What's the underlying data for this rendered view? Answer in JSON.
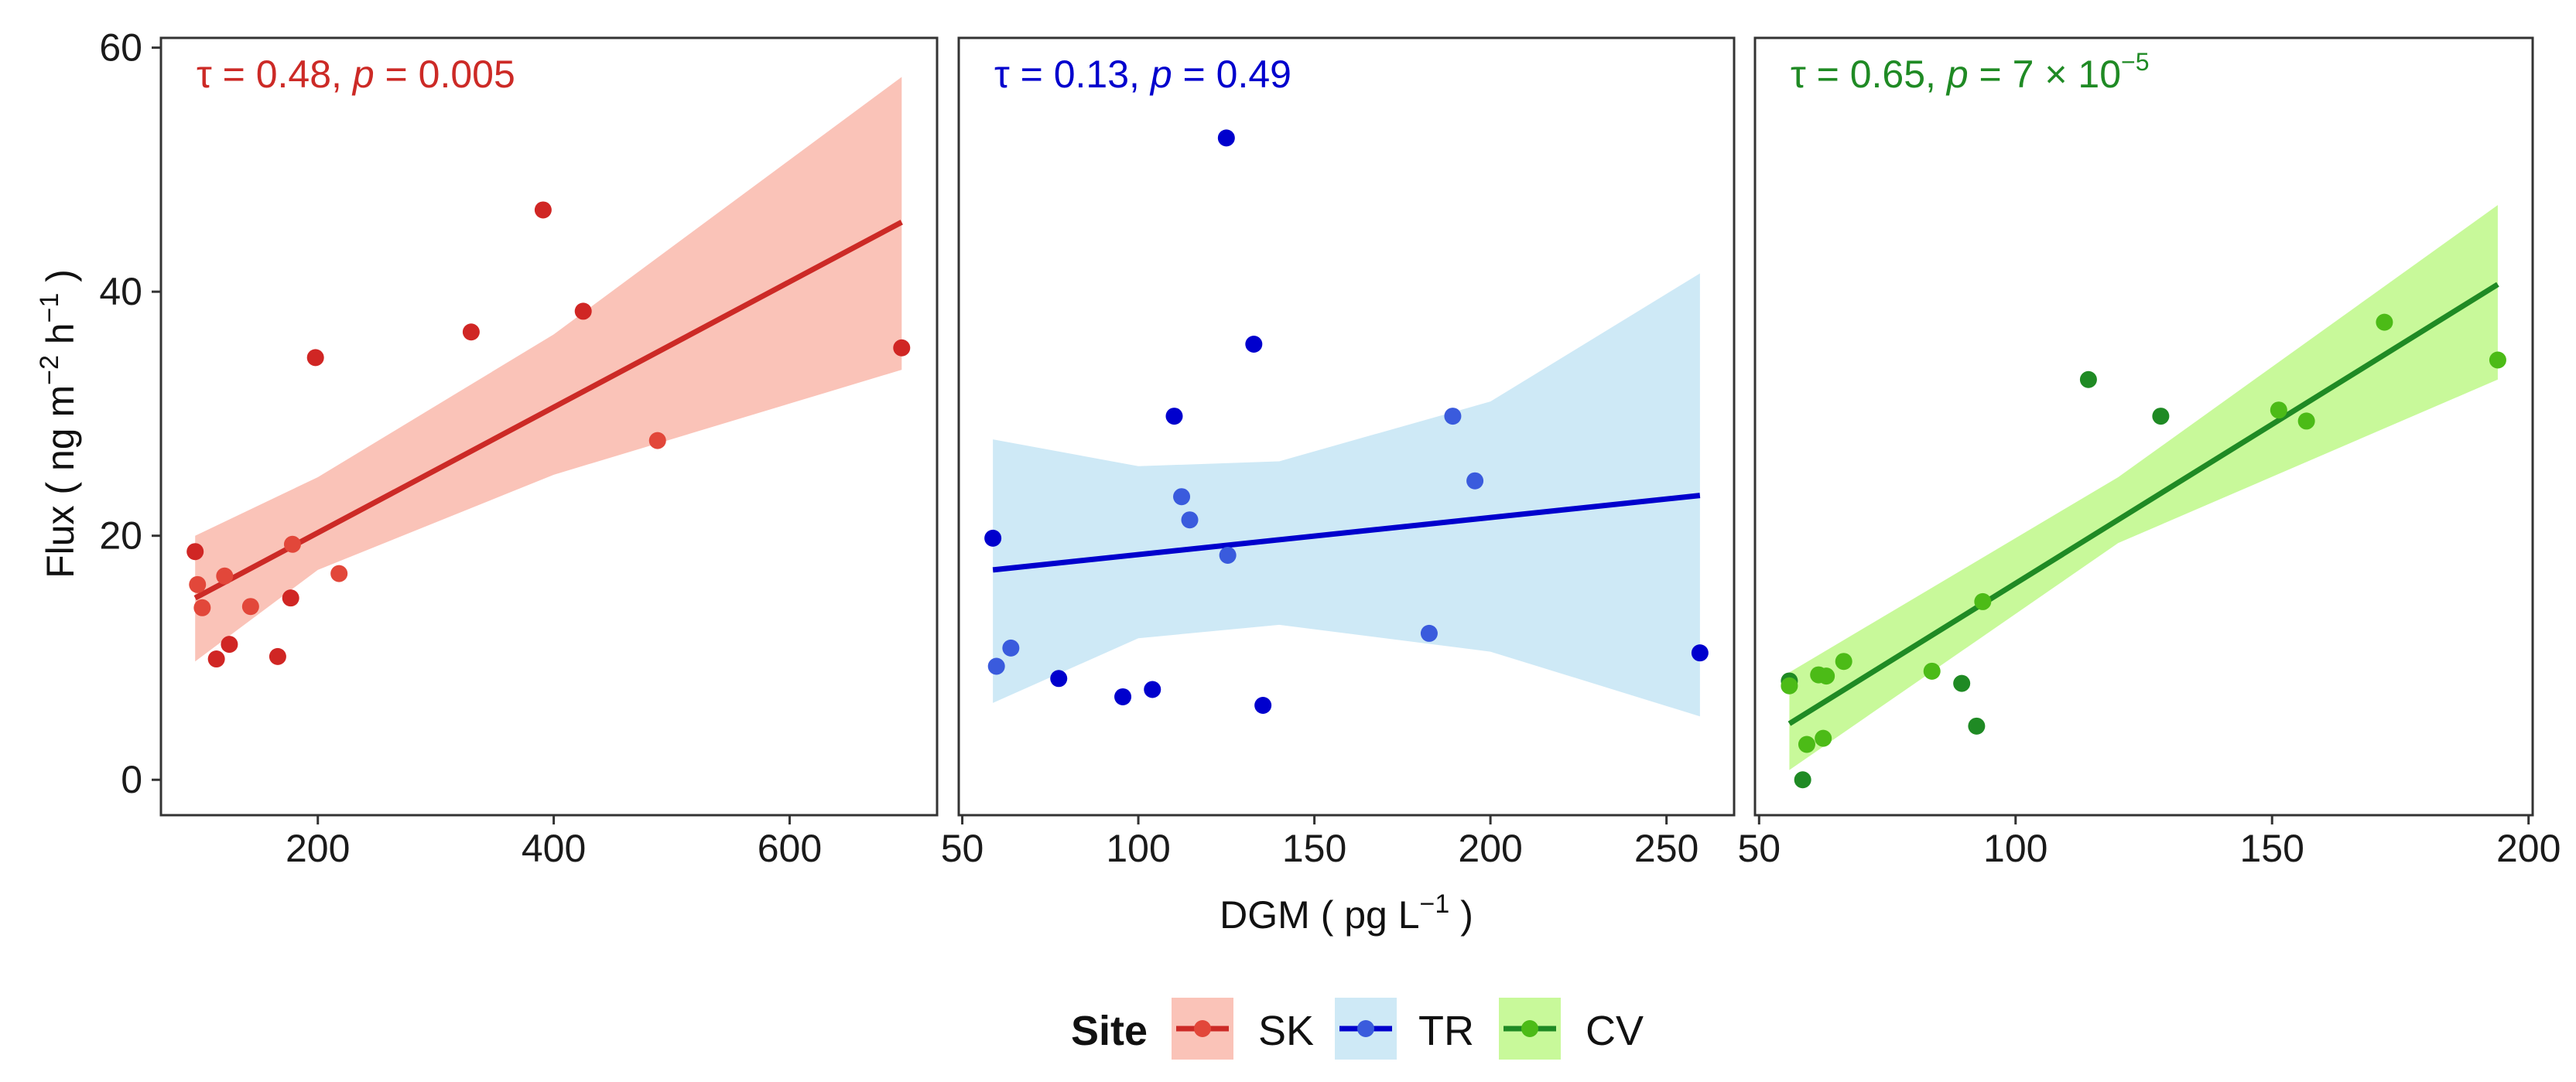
{
  "chart_data": [
    {
      "type": "scatter",
      "site": "SK",
      "color": "#CC2A26",
      "point_colors": [
        "#D02624",
        "#E2473A"
      ],
      "band_color": "#FAC3B8",
      "annotation": {
        "prefix": "τ = 0.48, ",
        "p": "p",
        "rest": " = 0.005",
        "sup": ""
      },
      "xlim": [
        67,
        725
      ],
      "ylim": [
        -2.9,
        60.8
      ],
      "xticks": [
        200,
        400,
        600
      ],
      "points": [
        {
          "x": 96,
          "y": 18.7,
          "shade": 0
        },
        {
          "x": 98,
          "y": 16.0,
          "shade": 1
        },
        {
          "x": 102,
          "y": 14.1,
          "shade": 1
        },
        {
          "x": 121,
          "y": 16.7,
          "shade": 1
        },
        {
          "x": 114,
          "y": 9.9,
          "shade": 0
        },
        {
          "x": 125,
          "y": 11.1,
          "shade": 0
        },
        {
          "x": 143,
          "y": 14.2,
          "shade": 1
        },
        {
          "x": 166,
          "y": 10.1,
          "shade": 0
        },
        {
          "x": 177,
          "y": 14.9,
          "shade": 0
        },
        {
          "x": 178.5,
          "y": 19.3,
          "shade": 1
        },
        {
          "x": 218,
          "y": 16.9,
          "shade": 1
        },
        {
          "x": 198,
          "y": 34.6,
          "shade": 0
        },
        {
          "x": 330,
          "y": 36.7,
          "shade": 0
        },
        {
          "x": 391,
          "y": 46.7,
          "shade": 0
        },
        {
          "x": 425,
          "y": 38.4,
          "shade": 0
        },
        {
          "x": 488,
          "y": 27.8,
          "shade": 1
        },
        {
          "x": 695,
          "y": 35.4,
          "shade": 0
        }
      ],
      "fit": [
        [
          96,
          14.9
        ],
        [
          695,
          45.7
        ]
      ],
      "band": [
        [
          96,
          9.7,
          20.0
        ],
        [
          200,
          17.2,
          24.8
        ],
        [
          400,
          25.0,
          36.5
        ],
        [
          695,
          33.6,
          57.6
        ]
      ]
    },
    {
      "type": "scatter",
      "site": "TR",
      "color": "#0000CD",
      "point_colors": [
        "#0000CD",
        "#3A5BDD"
      ],
      "band_color": "#CEE9F6",
      "annotation": {
        "prefix": "τ = 0.13, ",
        "p": "p",
        "rest": " = 0.49",
        "sup": ""
      },
      "xlim": [
        49.0,
        269.2
      ],
      "ylim": [
        -2.9,
        60.8
      ],
      "xticks": [
        50,
        100,
        150,
        200,
        250
      ],
      "points": [
        {
          "x": 125.0,
          "y": 52.6,
          "shade": 0
        },
        {
          "x": 132.8,
          "y": 35.7,
          "shade": 0
        },
        {
          "x": 110.2,
          "y": 29.8,
          "shade": 0
        },
        {
          "x": 189.3,
          "y": 29.8,
          "shade": 1
        },
        {
          "x": 195.6,
          "y": 24.5,
          "shade": 1
        },
        {
          "x": 112.3,
          "y": 23.2,
          "shade": 1
        },
        {
          "x": 114.6,
          "y": 21.3,
          "shade": 1
        },
        {
          "x": 58.7,
          "y": 19.8,
          "shade": 0
        },
        {
          "x": 125.4,
          "y": 18.4,
          "shade": 1
        },
        {
          "x": 182.6,
          "y": 12.0,
          "shade": 1
        },
        {
          "x": 259.5,
          "y": 10.4,
          "shade": 0
        },
        {
          "x": 63.8,
          "y": 10.8,
          "shade": 1
        },
        {
          "x": 59.7,
          "y": 9.3,
          "shade": 1
        },
        {
          "x": 77.4,
          "y": 8.3,
          "shade": 0
        },
        {
          "x": 95.6,
          "y": 6.8,
          "shade": 0
        },
        {
          "x": 104.0,
          "y": 7.4,
          "shade": 0
        },
        {
          "x": 135.4,
          "y": 6.1,
          "shade": 0
        }
      ],
      "fit": [
        [
          58.7,
          17.2
        ],
        [
          259.5,
          23.3
        ]
      ],
      "band": [
        [
          58.7,
          6.3,
          27.9
        ],
        [
          100,
          11.6,
          25.7
        ],
        [
          140,
          12.7,
          26.1
        ],
        [
          200,
          10.5,
          31.0
        ],
        [
          259.5,
          5.2,
          41.5
        ]
      ]
    },
    {
      "type": "scatter",
      "site": "CV",
      "color": "#1F8A24",
      "point_colors": [
        "#1F8A24",
        "#4CBB17"
      ],
      "band_color": "#C8F99A",
      "annotation": {
        "prefix": "τ = 0.65, ",
        "p": "p",
        "rest": " = 7 × 10",
        "sup": "−5"
      },
      "xlim": [
        49.2,
        200.8
      ],
      "ylim": [
        -2.9,
        60.8
      ],
      "xticks": [
        50,
        100,
        150,
        200
      ],
      "points": [
        {
          "x": 55.9,
          "y": 8.1,
          "shade": 0
        },
        {
          "x": 55.9,
          "y": 7.7,
          "shade": 1
        },
        {
          "x": 59.3,
          "y": 2.9,
          "shade": 1
        },
        {
          "x": 58.5,
          "y": 0.0,
          "shade": 0
        },
        {
          "x": 62.5,
          "y": 3.4,
          "shade": 1
        },
        {
          "x": 61.6,
          "y": 8.6,
          "shade": 1
        },
        {
          "x": 63.1,
          "y": 8.5,
          "shade": 1
        },
        {
          "x": 66.5,
          "y": 9.7,
          "shade": 1
        },
        {
          "x": 83.7,
          "y": 8.9,
          "shade": 1
        },
        {
          "x": 89.5,
          "y": 7.9,
          "shade": 0
        },
        {
          "x": 92.4,
          "y": 4.4,
          "shade": 0
        },
        {
          "x": 93.6,
          "y": 14.6,
          "shade": 1
        },
        {
          "x": 114.2,
          "y": 32.8,
          "shade": 0
        },
        {
          "x": 128.3,
          "y": 29.8,
          "shade": 0
        },
        {
          "x": 151.3,
          "y": 30.3,
          "shade": 1
        },
        {
          "x": 156.7,
          "y": 29.4,
          "shade": 1
        },
        {
          "x": 171.9,
          "y": 37.5,
          "shade": 1
        },
        {
          "x": 194.0,
          "y": 34.4,
          "shade": 1
        }
      ],
      "fit": [
        [
          55.9,
          4.6
        ],
        [
          194.0,
          40.6
        ]
      ],
      "band": [
        [
          55.9,
          0.8,
          8.8
        ],
        [
          120,
          19.4,
          24.8
        ],
        [
          194.0,
          32.8,
          47.1
        ]
      ]
    }
  ],
  "axes": {
    "yticks": [
      0,
      20,
      40,
      60
    ],
    "ylabel": {
      "main": "Flux ",
      "open": "( ng m",
      "sup1": "−2",
      "mid": " h",
      "sup2": "−1",
      "close": " )"
    },
    "xlabel": {
      "main": "DGM ",
      "open": "( pg L",
      "sup": "−1",
      "close": " )"
    }
  },
  "legend": {
    "title": "Site",
    "items": [
      "SK",
      "TR",
      "CV"
    ]
  }
}
